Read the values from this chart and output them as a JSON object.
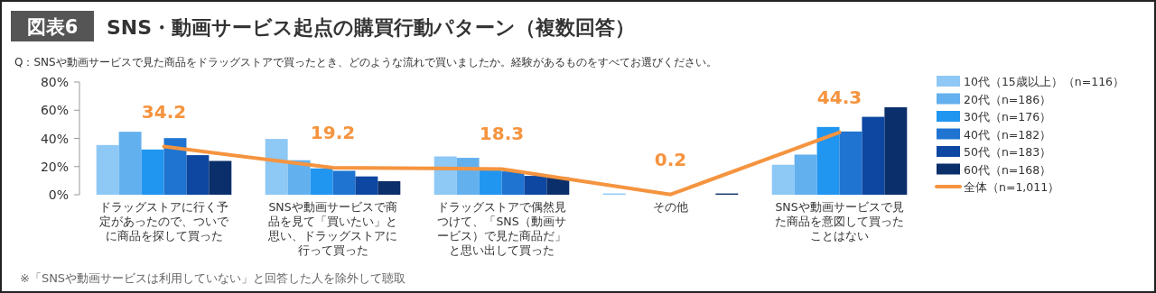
{
  "chart_data": {
    "type": "bar",
    "title": "SNS・動画サービス起点の購買行動パターン（複数回答）",
    "subtitle": "Q：SNSや動画サービスで見た商品をドラッグストアで買ったとき、どのような流れで買いましたか。経験があるものをすべてお選びください。",
    "annotations": [
      "図表6",
      "※「SNSや動画サービスは利用していない」と回答した人を除外して聴取"
    ],
    "categories": [
      "ドラッグストアに行く予定があったので、ついでに商品を探して買った",
      "SNSや動画サービスで商品を見て「買いたい」と思い、ドラッグストアに行って買った",
      "ドラッグストアで偶然見つけて、「SNS（動画サービス）で見た商品だ」と思い出して買った",
      "その他",
      "SNSや動画サービスで見た商品を意図して買ったことはない"
    ],
    "series": [
      {
        "name": "10代（15歳以上）（n=116）",
        "color": "#8ec8f5",
        "values": [
          35.3,
          39.6,
          27.2,
          0.9,
          21.3
        ]
      },
      {
        "name": "20代（n=186）",
        "color": "#63b0ee",
        "values": [
          44.7,
          24.5,
          26.2,
          0,
          28.5
        ]
      },
      {
        "name": "30代（n=176）",
        "color": "#2196f0",
        "values": [
          32.1,
          18.7,
          18.5,
          0,
          48.1
        ]
      },
      {
        "name": "40代（n=182）",
        "color": "#1e74d0",
        "values": [
          40.2,
          17.0,
          16.6,
          0,
          44.9
        ]
      },
      {
        "name": "50代（n=183）",
        "color": "#0d47a1",
        "values": [
          28.1,
          13.0,
          13.4,
          0,
          55.3
        ]
      },
      {
        "name": "60代（n=168）",
        "color": "#0a2f6b",
        "values": [
          24.0,
          9.6,
          12.3,
          0.9,
          62.1
        ]
      },
      {
        "name": "全体（n=1,011）",
        "color": "#f5943f",
        "type": "line",
        "values": [
          34.2,
          19.2,
          18.3,
          0.2,
          44.3
        ],
        "value_labels": [
          "34.2",
          "19.2",
          "18.3",
          "0.2",
          "44.3"
        ]
      }
    ],
    "ylim": [
      0,
      80
    ],
    "yticks": [
      {
        "value": 0,
        "label": "0%"
      },
      {
        "value": 20,
        "label": "20%"
      },
      {
        "value": 40,
        "label": "40%"
      },
      {
        "value": 60,
        "label": "60%"
      },
      {
        "value": 80,
        "label": "80%"
      }
    ],
    "grid": false,
    "legend": "right"
  }
}
